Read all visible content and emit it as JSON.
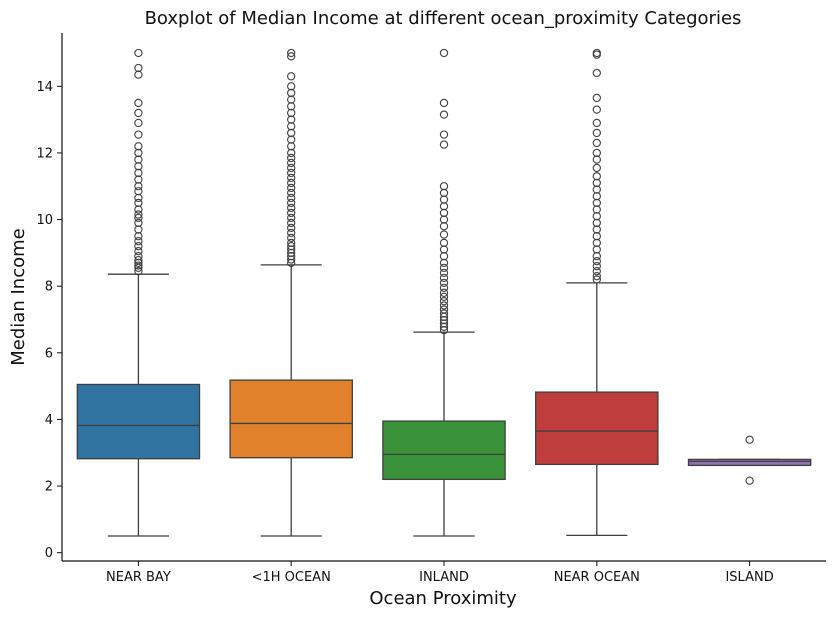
{
  "chart_data": {
    "type": "box",
    "title": "Boxplot of Median Income at different ocean_proximity Categories",
    "xlabel": "Ocean Proximity",
    "ylabel": "Median Income",
    "ylim": [
      -0.25,
      15.6
    ],
    "yticks": [
      0,
      2,
      4,
      6,
      8,
      10,
      12,
      14
    ],
    "categories": [
      "NEAR BAY",
      "<1H OCEAN",
      "INLAND",
      "NEAR OCEAN",
      "ISLAND"
    ],
    "colors": [
      "#3274a1",
      "#e1812c",
      "#3a923a",
      "#c03d3e",
      "#9372b2"
    ],
    "grid": false,
    "boxes": [
      {
        "category": "NEAR BAY",
        "whisker_low": 0.5,
        "q1": 2.82,
        "median": 3.82,
        "q3": 5.05,
        "whisker_high": 8.36,
        "outliers": [
          8.45,
          8.55,
          8.62,
          8.7,
          8.78,
          8.9,
          9.05,
          9.2,
          9.35,
          9.5,
          9.7,
          9.9,
          10.05,
          10.15,
          10.3,
          10.5,
          10.65,
          10.85,
          11.0,
          11.2,
          11.4,
          11.6,
          11.8,
          12.0,
          12.2,
          12.55,
          12.9,
          13.2,
          13.5,
          14.35,
          14.55,
          15.0
        ]
      },
      {
        "category": "<1H OCEAN",
        "whisker_low": 0.5,
        "q1": 2.85,
        "median": 3.88,
        "q3": 5.18,
        "whisker_high": 8.64,
        "outliers": [
          8.7,
          8.8,
          8.9,
          9.0,
          9.1,
          9.2,
          9.3,
          9.45,
          9.6,
          9.75,
          9.9,
          10.05,
          10.2,
          10.35,
          10.5,
          10.65,
          10.8,
          10.95,
          11.1,
          11.25,
          11.4,
          11.55,
          11.7,
          11.85,
          12.0,
          12.2,
          12.4,
          12.6,
          12.8,
          13.0,
          13.2,
          13.4,
          13.6,
          13.8,
          14.0,
          14.3,
          14.9,
          15.0
        ]
      },
      {
        "category": "INLAND",
        "whisker_low": 0.5,
        "q1": 2.2,
        "median": 2.95,
        "q3": 3.95,
        "whisker_high": 6.62,
        "outliers": [
          6.68,
          6.78,
          6.88,
          6.98,
          7.08,
          7.18,
          7.3,
          7.42,
          7.55,
          7.68,
          7.8,
          7.95,
          8.1,
          8.25,
          8.4,
          8.55,
          8.7,
          8.9,
          9.1,
          9.3,
          9.55,
          9.8,
          10.0,
          10.2,
          10.4,
          10.6,
          10.8,
          11.0,
          12.25,
          12.55,
          13.15,
          13.5,
          15.0
        ]
      },
      {
        "category": "NEAR OCEAN",
        "whisker_low": 0.52,
        "q1": 2.65,
        "median": 3.65,
        "q3": 4.82,
        "whisker_high": 8.1,
        "outliers": [
          8.2,
          8.3,
          8.45,
          8.6,
          8.75,
          8.9,
          9.1,
          9.3,
          9.5,
          9.7,
          9.9,
          10.1,
          10.3,
          10.5,
          10.7,
          10.9,
          11.1,
          11.3,
          11.55,
          11.8,
          12.0,
          12.3,
          12.6,
          12.9,
          13.3,
          13.65,
          14.4,
          14.95,
          15.0
        ]
      },
      {
        "category": "ISLAND",
        "whisker_low": 2.62,
        "q1": 2.62,
        "median": 2.74,
        "q3": 2.8,
        "whisker_high": 2.8,
        "outliers": [
          2.16,
          3.39
        ]
      }
    ]
  }
}
